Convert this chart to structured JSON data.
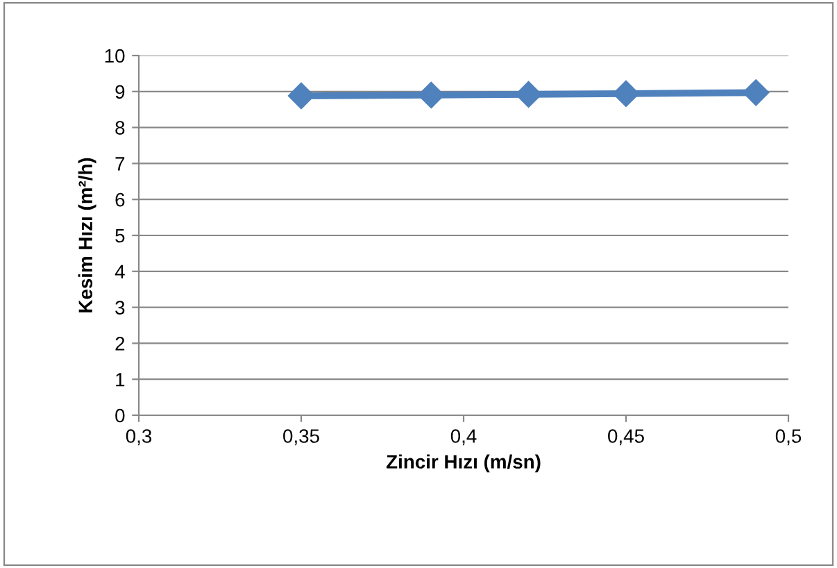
{
  "chart_data": {
    "type": "line",
    "xlabel": "Zincir Hızı (m/sn)",
    "ylabel": "Kesim Hızı (m²/h)",
    "x": [
      0.35,
      0.39,
      0.42,
      0.45,
      0.49
    ],
    "series": [
      {
        "color": "#4f81bd",
        "values": [
          8.88,
          8.9,
          8.92,
          8.94,
          8.97
        ]
      }
    ],
    "xlim": [
      0.3,
      0.5
    ],
    "xticks": [
      {
        "value": 0.3,
        "label": "0,3"
      },
      {
        "value": 0.35,
        "label": "0,35"
      },
      {
        "value": 0.4,
        "label": "0,4"
      },
      {
        "value": 0.45,
        "label": "0,45"
      },
      {
        "value": 0.5,
        "label": "0,5"
      }
    ],
    "ylim": [
      0,
      10
    ],
    "yticks": [
      0,
      1,
      2,
      3,
      4,
      5,
      6,
      7,
      8,
      9,
      10
    ],
    "grid": "y",
    "marker": "diamond",
    "line_style": "solid"
  }
}
